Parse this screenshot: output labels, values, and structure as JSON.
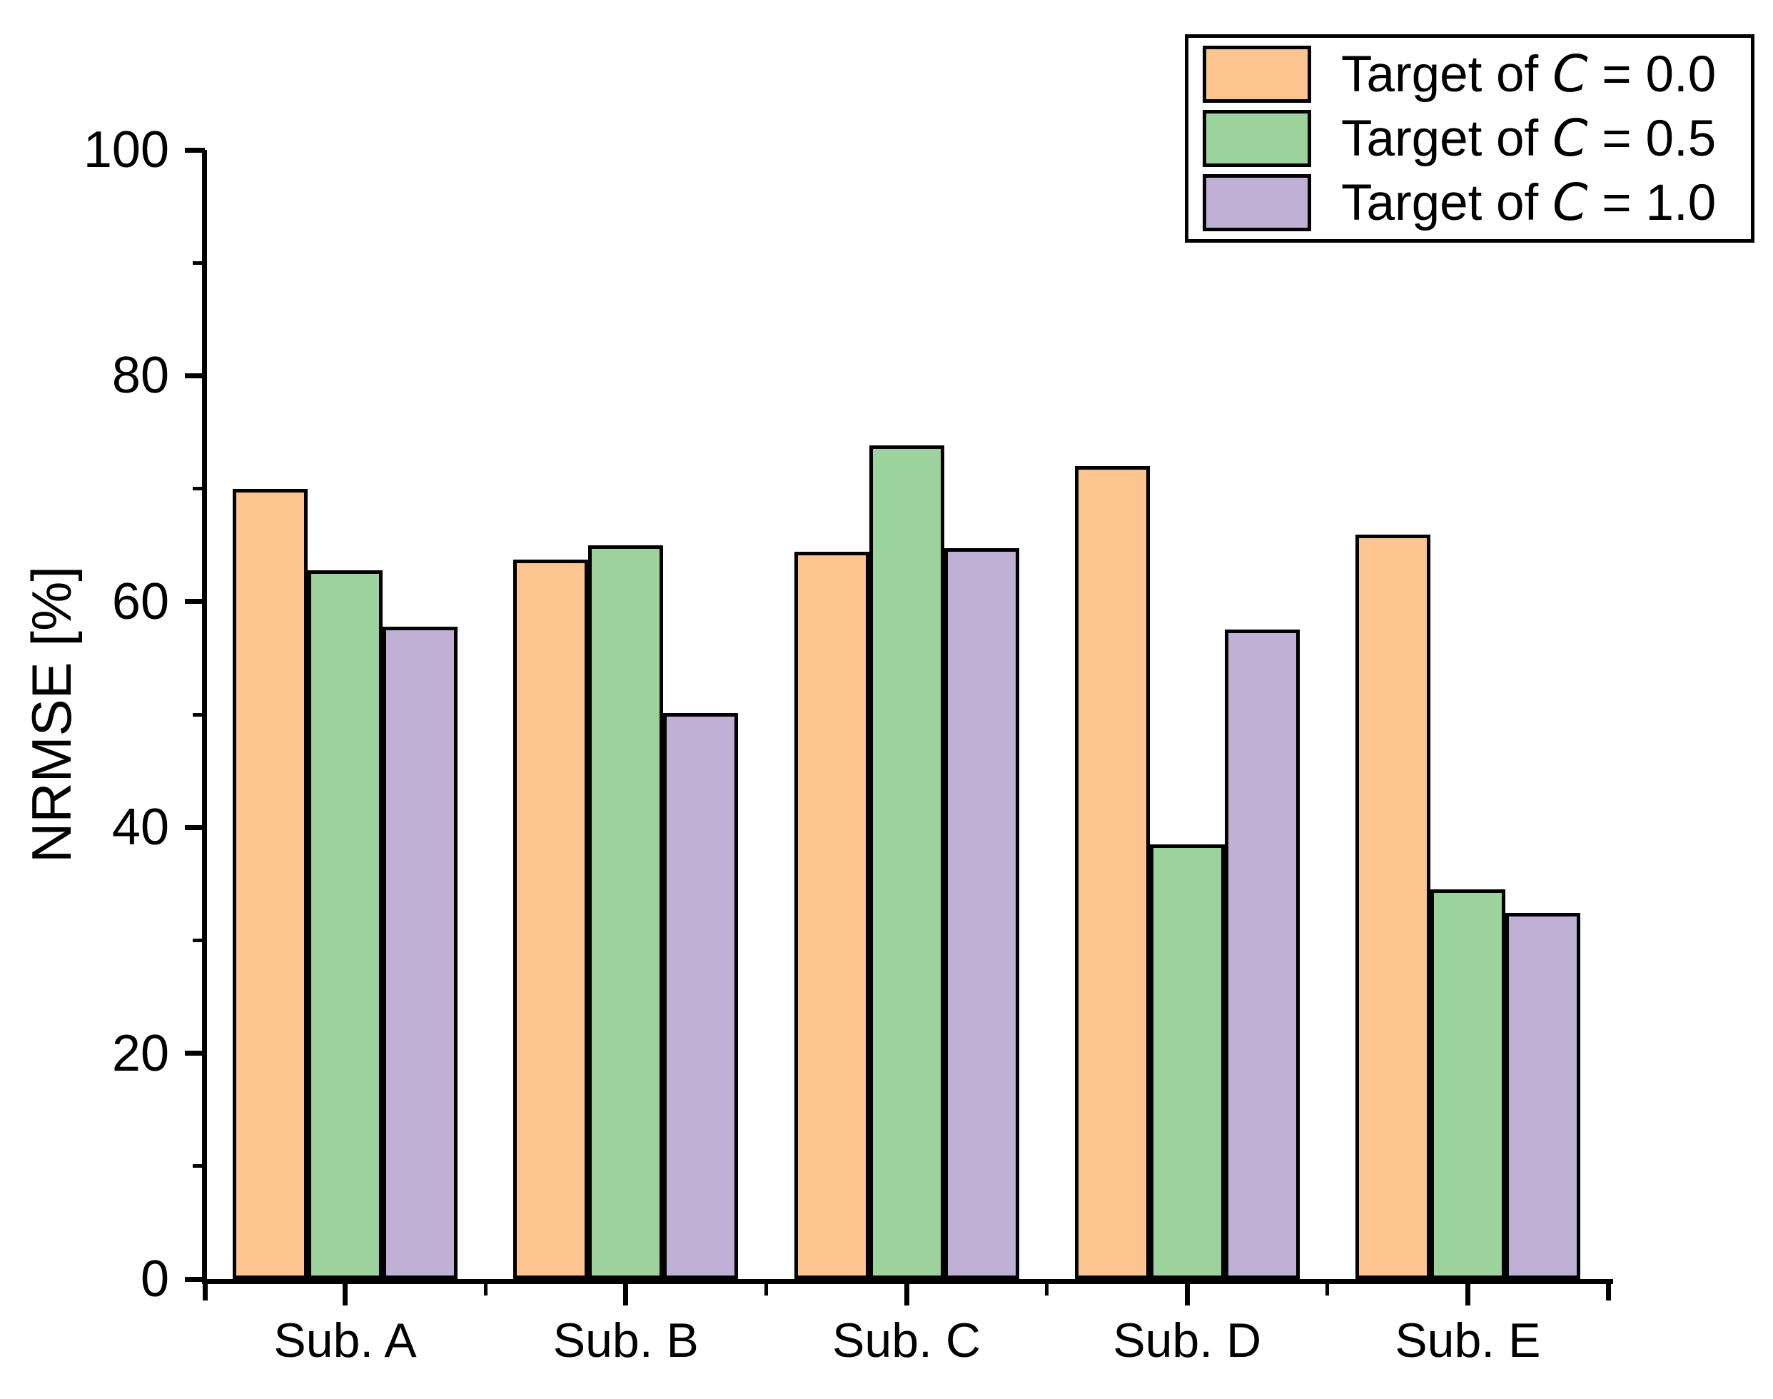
{
  "chart_data": {
    "type": "bar",
    "title": "",
    "categories": [
      "Sub. A",
      "Sub. B",
      "Sub. C",
      "Sub. D",
      "Sub. E"
    ],
    "series": [
      {
        "name": "Target of C = 0.0",
        "legend": {
          "prefix": "Target of ",
          "variable": "C",
          "suffix": " = 0.0"
        },
        "color": "#FCC48F",
        "values": [
          70.0,
          63.7,
          64.4,
          72.0,
          65.9
        ]
      },
      {
        "name": "Target of C = 0.5",
        "legend": {
          "prefix": "Target of ",
          "variable": "C",
          "suffix": " = 0.5"
        },
        "color": "#9CD39D",
        "values": [
          62.8,
          65.0,
          73.8,
          38.5,
          34.5
        ]
      },
      {
        "name": "Target of C = 1.0",
        "legend": {
          "prefix": "Target of ",
          "variable": "C",
          "suffix": " = 1.0"
        },
        "color": "#C1B0D6",
        "values": [
          57.8,
          50.1,
          64.7,
          57.5,
          32.4
        ]
      }
    ],
    "xlabel": "",
    "ylabel": "NRMSE [%]",
    "ylim": [
      0,
      100
    ],
    "y_major_ticks": [
      0,
      20,
      40,
      60,
      80,
      100
    ],
    "y_minor_ticks": [
      10,
      30,
      50,
      70,
      90
    ],
    "bar_edge_color": "#000000",
    "background_color": "#ffffff",
    "grid": false,
    "legend_position": "top-right"
  }
}
